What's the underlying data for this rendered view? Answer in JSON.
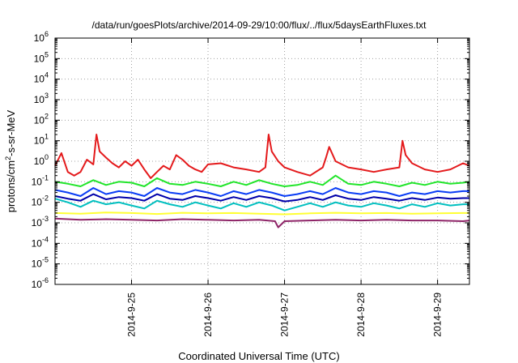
{
  "chart_data": {
    "type": "line",
    "title": "/data/run/goesPlots/archive/2014-09-29/10:00/flux/../flux/5daysEarthFluxes.txt",
    "xlabel": "Coordinated Universal Time (UTC)",
    "ylabel": {
      "base": "protons/cm",
      "sup": "2",
      "rest": "-s-sr-MeV"
    },
    "y_scale": "log",
    "ylim": [
      1e-06,
      1000000.0
    ],
    "y_ticks": [
      {
        "value": 1e-06,
        "base": "10",
        "exp": "-6"
      },
      {
        "value": 1e-05,
        "base": "10",
        "exp": "-5"
      },
      {
        "value": 0.0001,
        "base": "10",
        "exp": "-4"
      },
      {
        "value": 0.001,
        "base": "10",
        "exp": "-3"
      },
      {
        "value": 0.01,
        "base": "10",
        "exp": "-2"
      },
      {
        "value": 0.1,
        "base": "10",
        "exp": "-1"
      },
      {
        "value": 1,
        "base": "10",
        "exp": "0"
      },
      {
        "value": 10,
        "base": "10",
        "exp": "1"
      },
      {
        "value": 100,
        "base": "10",
        "exp": "2"
      },
      {
        "value": 1000,
        "base": "10",
        "exp": "3"
      },
      {
        "value": 10000,
        "base": "10",
        "exp": "4"
      },
      {
        "value": 100000,
        "base": "10",
        "exp": "5"
      },
      {
        "value": 1000000,
        "base": "10",
        "exp": "6"
      }
    ],
    "xlim": [
      "2014-09-24 00:00",
      "2014-09-29 10:00"
    ],
    "x_ticks": [
      {
        "value": "2014-09-25 00:00",
        "label": "2014-9-25"
      },
      {
        "value": "2014-09-26 00:00",
        "label": "2014-9-26"
      },
      {
        "value": "2014-09-27 00:00",
        "label": "2014-9-27"
      },
      {
        "value": "2014-09-28 00:00",
        "label": "2014-9-28"
      },
      {
        "value": "2014-09-29 00:00",
        "label": "2014-9-29"
      }
    ],
    "grid": true,
    "legend": "none",
    "series": [
      {
        "color": "#e41a1c",
        "x": [
          "2014-09-24 00:00",
          "2014-09-24 02:00",
          "2014-09-24 04:00",
          "2014-09-24 06:00",
          "2014-09-24 08:00",
          "2014-09-24 10:00",
          "2014-09-24 12:00",
          "2014-09-24 13:00",
          "2014-09-24 14:00",
          "2014-09-24 16:00",
          "2014-09-24 18:00",
          "2014-09-24 20:00",
          "2014-09-24 22:00",
          "2014-09-25 00:00",
          "2014-09-25 02:00",
          "2014-09-25 04:00",
          "2014-09-25 06:00",
          "2014-09-25 08:00",
          "2014-09-25 10:00",
          "2014-09-25 12:00",
          "2014-09-25 14:00",
          "2014-09-25 16:00",
          "2014-09-25 18:00",
          "2014-09-25 20:00",
          "2014-09-25 22:00",
          "2014-09-26 00:00",
          "2014-09-26 04:00",
          "2014-09-26 08:00",
          "2014-09-26 12:00",
          "2014-09-26 16:00",
          "2014-09-26 18:00",
          "2014-09-26 19:00",
          "2014-09-26 20:00",
          "2014-09-26 22:00",
          "2014-09-27 00:00",
          "2014-09-27 04:00",
          "2014-09-27 08:00",
          "2014-09-27 12:00",
          "2014-09-27 13:00",
          "2014-09-27 14:00",
          "2014-09-27 16:00",
          "2014-09-27 20:00",
          "2014-09-28 00:00",
          "2014-09-28 04:00",
          "2014-09-28 08:00",
          "2014-09-28 12:00",
          "2014-09-28 13:00",
          "2014-09-28 14:00",
          "2014-09-28 16:00",
          "2014-09-28 20:00",
          "2014-09-29 00:00",
          "2014-09-29 04:00",
          "2014-09-29 08:00",
          "2014-09-29 10:00"
        ],
        "y": [
          0.6,
          2.5,
          0.3,
          0.2,
          0.3,
          1.2,
          0.7,
          20,
          3,
          1.5,
          0.8,
          0.5,
          1,
          0.6,
          1.2,
          0.4,
          0.15,
          0.3,
          0.6,
          0.4,
          2,
          1.2,
          0.6,
          0.4,
          0.3,
          0.7,
          0.8,
          0.5,
          0.4,
          0.3,
          0.5,
          20,
          3,
          1,
          0.5,
          0.3,
          0.2,
          0.5,
          1.5,
          5,
          1,
          0.5,
          0.4,
          0.3,
          0.4,
          0.5,
          10,
          2,
          0.8,
          0.4,
          0.3,
          0.4,
          0.8,
          0.6
        ]
      },
      {
        "color": "#22e52b",
        "x": [
          "2014-09-24 00:00",
          "2014-09-24 04:00",
          "2014-09-24 08:00",
          "2014-09-24 12:00",
          "2014-09-24 16:00",
          "2014-09-24 20:00",
          "2014-09-25 00:00",
          "2014-09-25 04:00",
          "2014-09-25 08:00",
          "2014-09-25 12:00",
          "2014-09-25 16:00",
          "2014-09-25 20:00",
          "2014-09-26 00:00",
          "2014-09-26 04:00",
          "2014-09-26 08:00",
          "2014-09-26 12:00",
          "2014-09-26 16:00",
          "2014-09-26 20:00",
          "2014-09-27 00:00",
          "2014-09-27 04:00",
          "2014-09-27 08:00",
          "2014-09-27 12:00",
          "2014-09-27 16:00",
          "2014-09-27 20:00",
          "2014-09-28 00:00",
          "2014-09-28 04:00",
          "2014-09-28 08:00",
          "2014-09-28 12:00",
          "2014-09-28 16:00",
          "2014-09-28 20:00",
          "2014-09-29 00:00",
          "2014-09-29 04:00",
          "2014-09-29 08:00",
          "2014-09-29 10:00"
        ],
        "y": [
          0.1,
          0.08,
          0.06,
          0.12,
          0.07,
          0.1,
          0.09,
          0.06,
          0.15,
          0.08,
          0.07,
          0.1,
          0.08,
          0.06,
          0.1,
          0.07,
          0.12,
          0.08,
          0.06,
          0.07,
          0.1,
          0.07,
          0.2,
          0.08,
          0.07,
          0.1,
          0.08,
          0.06,
          0.09,
          0.07,
          0.1,
          0.08,
          0.09,
          0.1
        ]
      },
      {
        "color": "#00bfbf",
        "x": [
          "2014-09-24 00:00",
          "2014-09-24 04:00",
          "2014-09-24 08:00",
          "2014-09-24 12:00",
          "2014-09-24 16:00",
          "2014-09-24 20:00",
          "2014-09-25 00:00",
          "2014-09-25 04:00",
          "2014-09-25 08:00",
          "2014-09-25 12:00",
          "2014-09-25 16:00",
          "2014-09-25 20:00",
          "2014-09-26 00:00",
          "2014-09-26 04:00",
          "2014-09-26 08:00",
          "2014-09-26 12:00",
          "2014-09-26 16:00",
          "2014-09-26 20:00",
          "2014-09-27 00:00",
          "2014-09-27 04:00",
          "2014-09-27 08:00",
          "2014-09-27 12:00",
          "2014-09-27 16:00",
          "2014-09-27 20:00",
          "2014-09-28 00:00",
          "2014-09-28 04:00",
          "2014-09-28 08:00",
          "2014-09-28 12:00",
          "2014-09-28 16:00",
          "2014-09-28 20:00",
          "2014-09-29 00:00",
          "2014-09-29 04:00",
          "2014-09-29 08:00",
          "2014-09-29 10:00"
        ],
        "y": [
          0.015,
          0.01,
          0.006,
          0.012,
          0.008,
          0.01,
          0.007,
          0.005,
          0.012,
          0.008,
          0.006,
          0.01,
          0.007,
          0.005,
          0.009,
          0.006,
          0.01,
          0.007,
          0.004,
          0.006,
          0.009,
          0.006,
          0.01,
          0.007,
          0.006,
          0.009,
          0.007,
          0.005,
          0.008,
          0.006,
          0.009,
          0.007,
          0.008,
          0.008
        ]
      },
      {
        "color": "#0a3df5",
        "x": [
          "2014-09-24 00:00",
          "2014-09-24 04:00",
          "2014-09-24 08:00",
          "2014-09-24 12:00",
          "2014-09-24 16:00",
          "2014-09-24 20:00",
          "2014-09-25 00:00",
          "2014-09-25 04:00",
          "2014-09-25 08:00",
          "2014-09-25 12:00",
          "2014-09-25 16:00",
          "2014-09-25 20:00",
          "2014-09-26 00:00",
          "2014-09-26 04:00",
          "2014-09-26 08:00",
          "2014-09-26 12:00",
          "2014-09-26 16:00",
          "2014-09-26 20:00",
          "2014-09-27 00:00",
          "2014-09-27 04:00",
          "2014-09-27 08:00",
          "2014-09-27 12:00",
          "2014-09-27 16:00",
          "2014-09-27 20:00",
          "2014-09-28 00:00",
          "2014-09-28 04:00",
          "2014-09-28 08:00",
          "2014-09-28 12:00",
          "2014-09-28 16:00",
          "2014-09-28 20:00",
          "2014-09-29 00:00",
          "2014-09-29 04:00",
          "2014-09-29 08:00",
          "2014-09-29 10:00"
        ],
        "y": [
          0.04,
          0.03,
          0.02,
          0.05,
          0.025,
          0.035,
          0.03,
          0.02,
          0.05,
          0.03,
          0.025,
          0.04,
          0.03,
          0.02,
          0.035,
          0.025,
          0.04,
          0.03,
          0.02,
          0.025,
          0.035,
          0.025,
          0.05,
          0.03,
          0.025,
          0.035,
          0.03,
          0.02,
          0.03,
          0.025,
          0.035,
          0.03,
          0.035,
          0.035
        ]
      },
      {
        "color": "#0000aa",
        "x": [
          "2014-09-24 00:00",
          "2014-09-24 04:00",
          "2014-09-24 08:00",
          "2014-09-24 12:00",
          "2014-09-24 16:00",
          "2014-09-24 20:00",
          "2014-09-25 00:00",
          "2014-09-25 04:00",
          "2014-09-25 08:00",
          "2014-09-25 12:00",
          "2014-09-25 16:00",
          "2014-09-25 20:00",
          "2014-09-26 00:00",
          "2014-09-26 04:00",
          "2014-09-26 08:00",
          "2014-09-26 12:00",
          "2014-09-26 16:00",
          "2014-09-26 20:00",
          "2014-09-27 00:00",
          "2014-09-27 04:00",
          "2014-09-27 08:00",
          "2014-09-27 12:00",
          "2014-09-27 16:00",
          "2014-09-27 20:00",
          "2014-09-28 00:00",
          "2014-09-28 04:00",
          "2014-09-28 08:00",
          "2014-09-28 12:00",
          "2014-09-28 16:00",
          "2014-09-28 20:00",
          "2014-09-29 00:00",
          "2014-09-29 04:00",
          "2014-09-29 08:00",
          "2014-09-29 10:00"
        ],
        "y": [
          0.02,
          0.015,
          0.012,
          0.025,
          0.014,
          0.018,
          0.016,
          0.012,
          0.025,
          0.015,
          0.013,
          0.02,
          0.016,
          0.012,
          0.018,
          0.013,
          0.02,
          0.016,
          0.011,
          0.013,
          0.018,
          0.013,
          0.022,
          0.015,
          0.013,
          0.018,
          0.015,
          0.012,
          0.016,
          0.013,
          0.017,
          0.015,
          0.016,
          0.016
        ]
      },
      {
        "color": "#ffff33",
        "x": [
          "2014-09-24 00:00",
          "2014-09-24 08:00",
          "2014-09-24 16:00",
          "2014-09-25 00:00",
          "2014-09-25 08:00",
          "2014-09-25 16:00",
          "2014-09-26 00:00",
          "2014-09-26 08:00",
          "2014-09-26 16:00",
          "2014-09-27 00:00",
          "2014-09-27 08:00",
          "2014-09-27 16:00",
          "2014-09-28 00:00",
          "2014-09-28 08:00",
          "2014-09-28 16:00",
          "2014-09-29 00:00",
          "2014-09-29 08:00",
          "2014-09-29 10:00"
        ],
        "y": [
          0.003,
          0.0028,
          0.0032,
          0.003,
          0.0027,
          0.0031,
          0.0029,
          0.003,
          0.0028,
          0.0026,
          0.0029,
          0.0031,
          0.0029,
          0.003,
          0.0028,
          0.0029,
          0.003,
          0.003
        ]
      },
      {
        "color": "#8e2467",
        "x": [
          "2014-09-24 00:00",
          "2014-09-24 08:00",
          "2014-09-24 16:00",
          "2014-09-25 00:00",
          "2014-09-25 08:00",
          "2014-09-25 16:00",
          "2014-09-26 00:00",
          "2014-09-26 08:00",
          "2014-09-26 16:00",
          "2014-09-26 21:00",
          "2014-09-26 22:00",
          "2014-09-27 00:00",
          "2014-09-27 08:00",
          "2014-09-27 16:00",
          "2014-09-28 00:00",
          "2014-09-28 08:00",
          "2014-09-28 16:00",
          "2014-09-29 00:00",
          "2014-09-29 08:00",
          "2014-09-29 10:00"
        ],
        "y": [
          0.0016,
          0.0014,
          0.0015,
          0.0014,
          0.0013,
          0.0015,
          0.0014,
          0.0013,
          0.0014,
          0.0012,
          0.0006,
          0.0012,
          0.0013,
          0.0014,
          0.0013,
          0.0014,
          0.0013,
          0.0013,
          0.0012,
          0.0013
        ]
      }
    ]
  }
}
